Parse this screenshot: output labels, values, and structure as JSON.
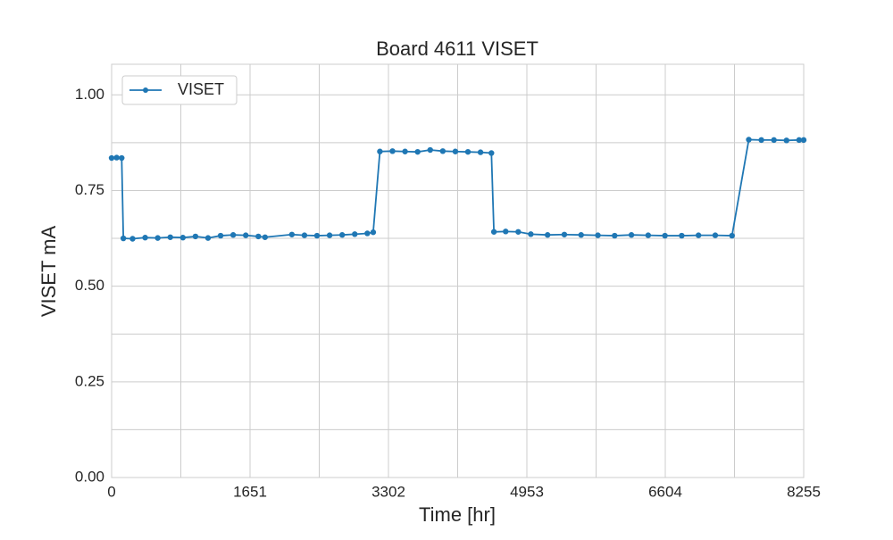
{
  "chart_data": {
    "type": "line",
    "title": "Board 4611 VISET",
    "xlabel": "Time [hr]",
    "ylabel": "VISET mA",
    "x": [
      0,
      60,
      120,
      140,
      250,
      400,
      550,
      700,
      850,
      1000,
      1150,
      1300,
      1450,
      1600,
      1750,
      1830,
      2150,
      2300,
      2450,
      2600,
      2750,
      2900,
      3050,
      3120,
      3200,
      3350,
      3500,
      3650,
      3800,
      3950,
      4100,
      4250,
      4400,
      4530,
      4560,
      4700,
      4850,
      5000,
      5200,
      5400,
      5600,
      5800,
      6000,
      6200,
      6400,
      6600,
      6800,
      7000,
      7200,
      7400,
      7600,
      7750,
      7900,
      8050,
      8200,
      8255
    ],
    "series": [
      {
        "name": "VISET",
        "color": "#1f77b4",
        "values": [
          0.835,
          0.836,
          0.835,
          0.625,
          0.624,
          0.627,
          0.626,
          0.628,
          0.627,
          0.63,
          0.626,
          0.632,
          0.634,
          0.633,
          0.63,
          0.628,
          0.635,
          0.633,
          0.632,
          0.633,
          0.634,
          0.636,
          0.638,
          0.641,
          0.852,
          0.853,
          0.852,
          0.851,
          0.856,
          0.853,
          0.852,
          0.851,
          0.85,
          0.848,
          0.642,
          0.643,
          0.642,
          0.636,
          0.634,
          0.635,
          0.634,
          0.633,
          0.632,
          0.634,
          0.633,
          0.632,
          0.632,
          0.633,
          0.633,
          0.632,
          0.883,
          0.882,
          0.882,
          0.881,
          0.882,
          0.882
        ]
      }
    ],
    "xlim": [
      0,
      8255
    ],
    "ylim": [
      0,
      1.08
    ],
    "xticks": [
      0,
      1651,
      3302,
      4953,
      6604,
      8255
    ],
    "yticks": [
      {
        "value": 0,
        "label": "0.00"
      },
      {
        "value": 0.25,
        "label": "0.25"
      },
      {
        "value": 0.5,
        "label": "0.50"
      },
      {
        "value": 0.75,
        "label": "0.75"
      },
      {
        "value": 1,
        "label": "1.00"
      }
    ],
    "xgrid_minor": [
      825.5,
      2476.5,
      4127.5,
      5778.5,
      7429.5
    ],
    "ygrid_minor": [
      0.125,
      0.375,
      0.625,
      0.875
    ],
    "grid": true,
    "legend": "upper left"
  }
}
